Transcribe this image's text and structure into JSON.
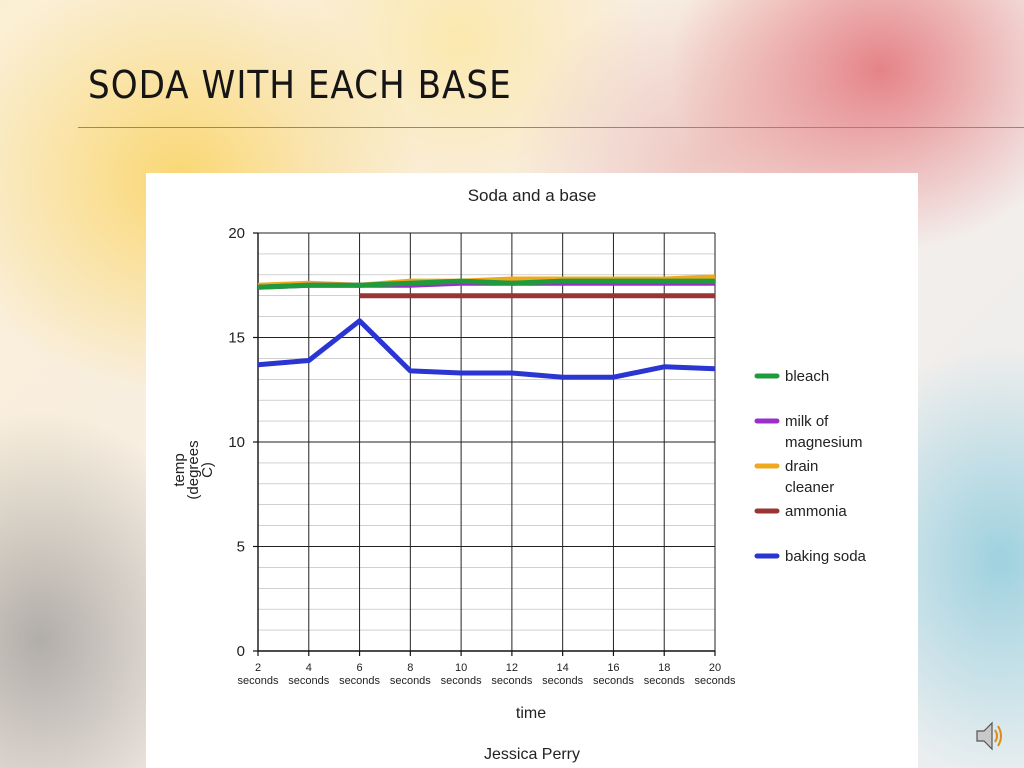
{
  "slide": {
    "title": "SODA WITH EACH BASE"
  },
  "chart_data": {
    "type": "line",
    "title": "Soda and a base",
    "xlabel": "time",
    "ylabel": [
      "temp",
      "(degrees",
      "C)"
    ],
    "author": "Jessica Perry",
    "categories": [
      [
        "2",
        "seconds"
      ],
      [
        "4",
        "seconds"
      ],
      [
        "6",
        "seconds"
      ],
      [
        "8",
        "seconds"
      ],
      [
        "10",
        "seconds"
      ],
      [
        "12",
        "seconds"
      ],
      [
        "14",
        "seconds"
      ],
      [
        "16",
        "seconds"
      ],
      [
        "18",
        "seconds"
      ],
      [
        "20",
        "seconds"
      ]
    ],
    "ylim": [
      0,
      20
    ],
    "yticks": [
      "0",
      "5",
      "10",
      "15",
      "20"
    ],
    "grid": true,
    "legend_position": "right",
    "series": [
      {
        "name": "drain cleaner",
        "label_lines": [
          "drain",
          "cleaner"
        ],
        "color": "#f0a81c",
        "values": [
          17.5,
          17.6,
          17.5,
          17.7,
          17.7,
          17.8,
          17.8,
          17.8,
          17.8,
          17.9
        ]
      },
      {
        "name": "milk of magnesium",
        "label_lines": [
          "milk of",
          "magnesium"
        ],
        "color": "#9b2fc9",
        "values": [
          17.4,
          17.5,
          17.5,
          17.5,
          17.6,
          17.6,
          17.6,
          17.6,
          17.6,
          17.6
        ]
      },
      {
        "name": "bleach",
        "label_lines": [
          "bleach"
        ],
        "color": "#1f9a3c",
        "values": [
          17.4,
          17.5,
          17.5,
          17.6,
          17.7,
          17.6,
          17.7,
          17.7,
          17.7,
          17.7
        ]
      },
      {
        "name": "ammonia",
        "label_lines": [
          "ammonia"
        ],
        "color": "#9b3535",
        "values": [
          null,
          null,
          17.0,
          17.0,
          17.0,
          17.0,
          17.0,
          17.0,
          17.0,
          17.0
        ]
      },
      {
        "name": "baking soda",
        "label_lines": [
          "baking soda"
        ],
        "color": "#2a35d2",
        "values": [
          13.7,
          13.9,
          15.8,
          13.4,
          13.3,
          13.3,
          13.1,
          13.1,
          13.6,
          13.5
        ]
      }
    ],
    "legend_order": [
      "bleach",
      "milk of magnesium",
      "drain cleaner",
      "ammonia",
      "baking soda"
    ]
  },
  "icons": {
    "speaker": "speaker-icon"
  }
}
